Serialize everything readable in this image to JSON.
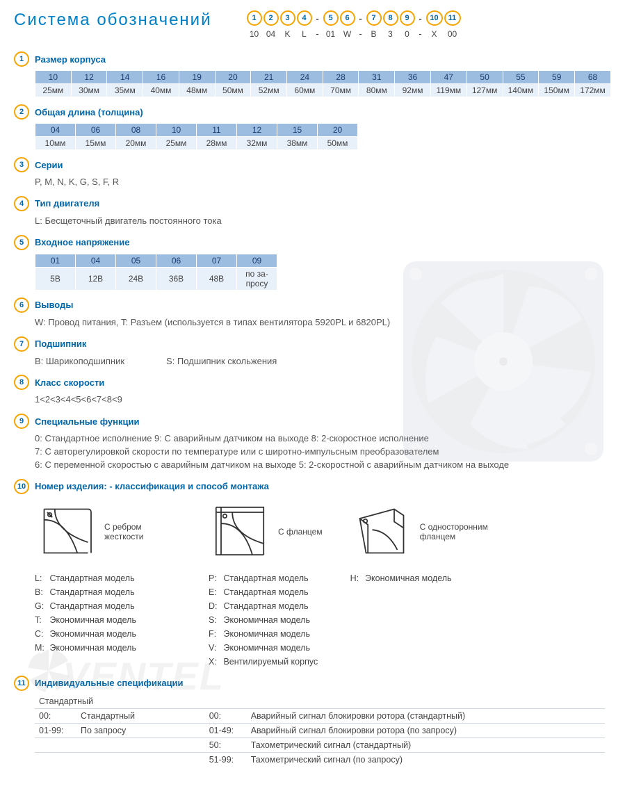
{
  "colors": {
    "title": "#0080c8",
    "circle_border": "#f7a400",
    "circle_text": "#0066aa",
    "table_header_bg": "#9dbde0",
    "table_header_fg": "#1a3e6f",
    "table_cell_bg": "#e8f0fa",
    "body_text": "#444444",
    "heading": "#0066aa",
    "divider": "#cfd6dd"
  },
  "title": "Система обозначений",
  "legend": {
    "positions": [
      "1",
      "2",
      "3",
      "4",
      "5",
      "6",
      "7",
      "8",
      "9",
      "10",
      "11"
    ],
    "values": [
      "10",
      "04",
      "K",
      "L",
      "01",
      "W",
      "B",
      "3",
      "0",
      "X",
      "00"
    ],
    "dash_after": [
      3,
      5,
      8
    ]
  },
  "sections": [
    {
      "num": "1",
      "title": "Размер корпуса",
      "type": "table",
      "rows": [
        [
          "10",
          "12",
          "14",
          "16",
          "19",
          "20",
          "21",
          "24",
          "28",
          "31",
          "36",
          "47",
          "50",
          "55",
          "59",
          "68"
        ],
        [
          "25мм",
          "30мм",
          "35мм",
          "40мм",
          "48мм",
          "50мм",
          "52мм",
          "60мм",
          "70мм",
          "80мм",
          "92мм",
          "119мм",
          "127мм",
          "140мм",
          "150мм",
          "172мм"
        ]
      ]
    },
    {
      "num": "2",
      "title": "Общая длина (толщина)",
      "type": "table",
      "rows": [
        [
          "04",
          "06",
          "08",
          "10",
          "11",
          "12",
          "15",
          "20"
        ],
        [
          "10мм",
          "15мм",
          "20мм",
          "25мм",
          "28мм",
          "32мм",
          "38мм",
          "50мм"
        ]
      ]
    },
    {
      "num": "3",
      "title": "Серии",
      "type": "text",
      "text": "P, M, N, K, G, S, F, R"
    },
    {
      "num": "4",
      "title": "Тип двигателя",
      "type": "text",
      "text": "L: Бесщеточный двигатель постоянного тока"
    },
    {
      "num": "5",
      "title": "Входное напряжение",
      "type": "table",
      "rows": [
        [
          "01",
          "04",
          "05",
          "06",
          "07",
          "09"
        ],
        [
          "5В",
          "12В",
          "24В",
          "36В",
          "48В",
          "по за-\nпросу"
        ]
      ]
    },
    {
      "num": "6",
      "title": "Выводы",
      "type": "text",
      "text": "W: Провод питания, T: Разъем (используется в типах вентилятора  5920PL и 6820PL)"
    },
    {
      "num": "7",
      "title": "Подшипник",
      "type": "text_cols",
      "cols": [
        "B: Шарикоподшипник",
        "S: Подшипник скольжения"
      ]
    },
    {
      "num": "8",
      "title": "Класс скорости",
      "type": "text",
      "text": "1<2<3<4<5<6<7<8<9"
    },
    {
      "num": "9",
      "title": "Специальные функции",
      "type": "multiline",
      "lines": [
        "0: Стандартное исполнение   9:  С аварийным датчиком на выходе   8: 2-скоростное исполнение",
        "7: С авторегулировкой скорости по температуре или с широтно-импульсным преобразователем",
        "6: С переменной скоростью с аварийным датчиком на выходе   5: 2-скоростной с аварийным датчиком на выходе"
      ]
    },
    {
      "num": "10",
      "title": "Номер изделия: - классификация  и способ монтажа",
      "type": "mount",
      "cols": [
        {
          "img": "rib",
          "caption": "С ребром жесткости",
          "items": [
            {
              "k": "L",
              "v": "Стандартная модель"
            },
            {
              "k": "B",
              "v": "Стандартная модель"
            },
            {
              "k": "G",
              "v": "Стандартная модель"
            },
            {
              "k": "T",
              "v": "Экономичная модель"
            },
            {
              "k": "C",
              "v": "Экономичная модель"
            },
            {
              "k": "M",
              "v": "Экономичная модель"
            }
          ]
        },
        {
          "img": "flange",
          "caption": "С фланцем",
          "items": [
            {
              "k": "P",
              "v": "Стандартная модель"
            },
            {
              "k": "E",
              "v": "Стандартная модель"
            },
            {
              "k": "D",
              "v": "Стандартная модель"
            },
            {
              "k": "S",
              "v": "Экономичная модель"
            },
            {
              "k": "F",
              "v": "Экономичная модель"
            },
            {
              "k": "V",
              "v": "Экономичная модель"
            },
            {
              "k": "X",
              "v": "Вентилируемый корпус"
            }
          ]
        },
        {
          "img": "single",
          "caption": "С односторонним фланцем",
          "items": [
            {
              "k": "H",
              "v": "Экономичная модель"
            }
          ]
        }
      ]
    },
    {
      "num": "11",
      "title": "Индивидуальные спецификации",
      "type": "spec",
      "left_header": "Стандартный",
      "left": [
        {
          "k": "00:",
          "v": "Стандартный"
        },
        {
          "k": "01-99:",
          "v": "По запросу"
        }
      ],
      "right": [
        {
          "k": "00:",
          "v": "Аварийный сигнал блокировки ротора (стандартный)"
        },
        {
          "k": "01-49:",
          "v": "Аварийный сигнал блокировки ротора (по запросу)"
        },
        {
          "k": "50:",
          "v": "Тахометрический сигнал (стандартный)"
        },
        {
          "k": "51-99:",
          "v": "Тахометрический сигнал (по запросу)"
        }
      ]
    }
  ],
  "watermark": "VENTEL"
}
